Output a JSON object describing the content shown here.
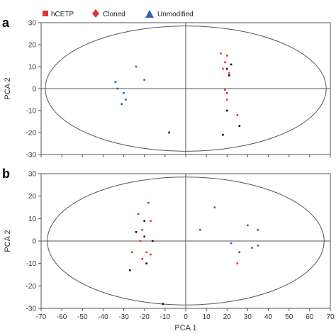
{
  "colors": {
    "red": "#e0352b",
    "black": "#111111",
    "blue": "#2d63b0"
  },
  "legend": [
    {
      "label": "hCETP",
      "shape": "square",
      "color": "#e0352b"
    },
    {
      "label": "Cloned",
      "shape": "diamond",
      "color": "#e0352b"
    },
    {
      "label": "Unmodified",
      "shape": "triangle",
      "color": "#2d63b0"
    }
  ],
  "chart_data": [
    {
      "panel_label": "a",
      "type": "scatter",
      "xlabel": "",
      "ylabel": "PCA 2",
      "xlim": [
        -70,
        70
      ],
      "ylim": [
        -30,
        30
      ],
      "y_ticks": [
        "30",
        "20",
        "10",
        "0",
        "-10",
        "-20",
        "-30"
      ],
      "x_ticks": [],
      "grid": false,
      "ellipse": {
        "center": [
          0,
          0
        ],
        "rx": 68,
        "ry": 28.5
      },
      "series": [
        {
          "color": "red",
          "points": [
            [
              17,
              16
            ],
            [
              20,
              15
            ],
            [
              19,
              12
            ],
            [
              18,
              9
            ],
            [
              21,
              7
            ],
            [
              19,
              -0.5
            ],
            [
              20,
              -2
            ],
            [
              20,
              -5
            ],
            [
              25,
              -12
            ]
          ]
        },
        {
          "color": "black",
          "points": [
            [
              22,
              11
            ],
            [
              20,
              9
            ],
            [
              21,
              6
            ],
            [
              20,
              -10
            ],
            [
              26,
              -17
            ],
            [
              18,
              -21
            ],
            [
              -8,
              -20
            ]
          ]
        },
        {
          "color": "blue",
          "points": [
            [
              -34,
              3
            ],
            [
              -33,
              0
            ],
            [
              -30,
              -2
            ],
            [
              -29,
              -5
            ],
            [
              -31,
              -7
            ],
            [
              -24,
              10
            ],
            [
              -20,
              4
            ]
          ]
        }
      ]
    },
    {
      "panel_label": "b",
      "type": "scatter",
      "xlabel": "PCA 1",
      "ylabel": "PCA 2",
      "xlim": [
        -70,
        70
      ],
      "ylim": [
        -30,
        30
      ],
      "y_ticks": [
        "30",
        "20",
        "10",
        "0",
        "-10",
        "-20",
        "-30"
      ],
      "x_ticks": [
        "-70",
        "-60",
        "-50",
        "-40",
        "-30",
        "-20",
        "-10",
        "0",
        "10",
        "20",
        "30",
        "40",
        "50",
        "60",
        "70"
      ],
      "grid": false,
      "ellipse": {
        "center": [
          0,
          0
        ],
        "rx": 67,
        "ry": 28.5
      },
      "series": [
        {
          "color": "red",
          "points": [
            [
              -18,
              17
            ],
            [
              -23,
              12
            ],
            [
              -17,
              9
            ],
            [
              -21,
              5
            ],
            [
              -22,
              0
            ],
            [
              -26,
              -5
            ],
            [
              -19,
              -5
            ],
            [
              -17,
              -6
            ],
            [
              -21,
              -8
            ],
            [
              25,
              -10
            ]
          ]
        },
        {
          "color": "black",
          "points": [
            [
              -20,
              9
            ],
            [
              -24,
              4
            ],
            [
              -20,
              2
            ],
            [
              -16,
              0
            ],
            [
              -19,
              -10
            ],
            [
              -27,
              -13
            ],
            [
              -11,
              -28
            ]
          ]
        },
        {
          "color": "blue",
          "points": [
            [
              14,
              15
            ],
            [
              7,
              5
            ],
            [
              30,
              7
            ],
            [
              35,
              5
            ],
            [
              22,
              -1
            ],
            [
              26,
              -5
            ],
            [
              32,
              -3
            ],
            [
              35,
              -2
            ]
          ]
        }
      ]
    }
  ]
}
